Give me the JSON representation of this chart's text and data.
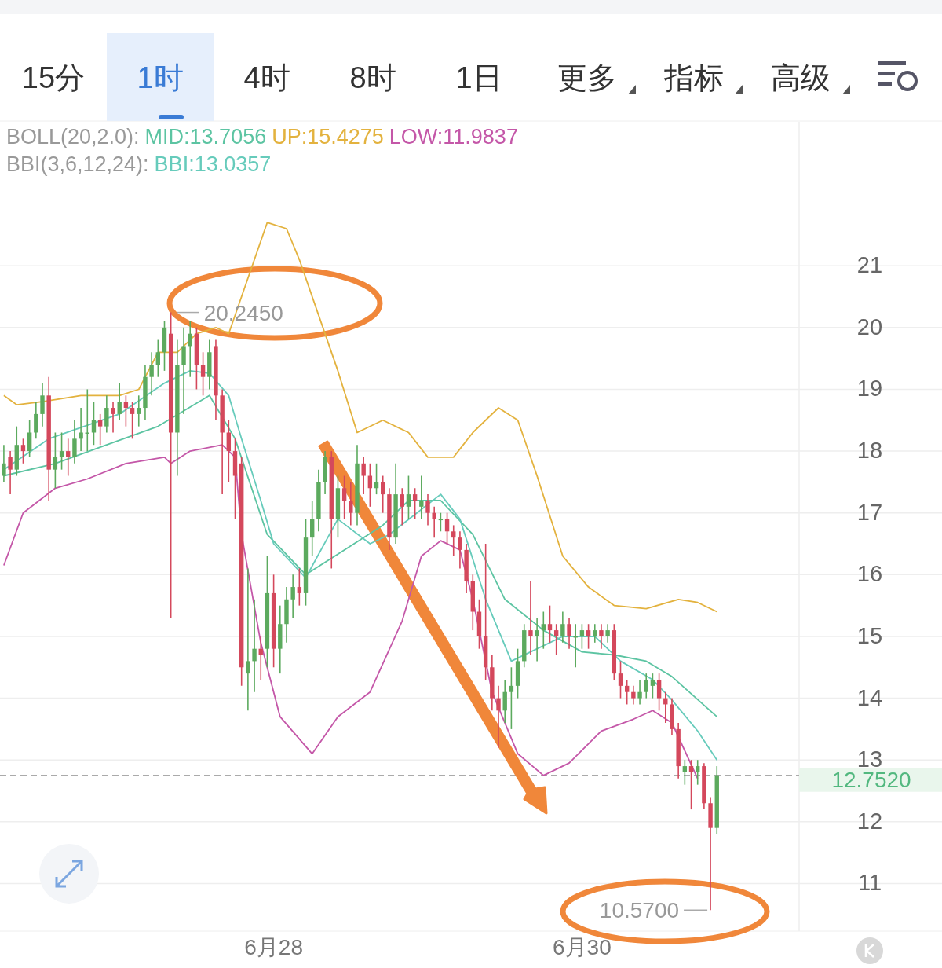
{
  "chart_data": {
    "type": "candlestick",
    "categories": [
      null,
      null,
      null,
      null,
      null,
      null,
      null,
      null,
      null,
      null,
      null,
      null,
      null,
      null,
      null,
      null,
      null,
      null,
      null,
      null,
      null,
      null,
      null,
      null,
      null,
      null,
      null,
      null,
      null,
      null,
      null,
      null,
      null,
      null,
      null,
      null,
      null,
      null,
      null,
      null,
      null,
      null,
      "6月28",
      null,
      null,
      null,
      null,
      null,
      null,
      null,
      null,
      null,
      null,
      null,
      null,
      null,
      null,
      null,
      null,
      null,
      null,
      null,
      null,
      null,
      null,
      null,
      null,
      null,
      null,
      null,
      null,
      null,
      null,
      null,
      null,
      null,
      null,
      null,
      null,
      null,
      null,
      null,
      null,
      null,
      null,
      null,
      null,
      null,
      null,
      null,
      "6月30",
      null,
      null,
      null,
      null,
      null,
      null,
      null,
      null,
      null,
      null,
      null,
      null,
      null,
      null,
      null,
      null,
      null,
      null,
      null,
      null,
      null,
      null,
      null,
      null,
      null,
      null,
      null,
      null,
      null,
      null,
      null,
      null,
      null
    ],
    "ohlc": [
      [
        17.6,
        18.1,
        17.5,
        17.8
      ],
      [
        17.9,
        18.0,
        17.3,
        17.7
      ],
      [
        17.7,
        18.4,
        17.6,
        18.1
      ],
      [
        18.1,
        18.2,
        17.8,
        18.0
      ],
      [
        18.0,
        18.5,
        17.9,
        18.3
      ],
      [
        18.3,
        18.8,
        18.2,
        18.6
      ],
      [
        18.6,
        19.1,
        18.4,
        18.9
      ],
      [
        18.9,
        19.2,
        17.2,
        17.7
      ],
      [
        17.7,
        18.3,
        17.4,
        17.9
      ],
      [
        17.9,
        18.3,
        17.7,
        18.0
      ],
      [
        18.0,
        18.2,
        17.6,
        17.9
      ],
      [
        17.9,
        18.5,
        17.8,
        18.2
      ],
      [
        18.2,
        18.7,
        18.0,
        18.3
      ],
      [
        18.3,
        19.0,
        18.0,
        18.3
      ],
      [
        18.3,
        18.8,
        18.1,
        18.5
      ],
      [
        18.5,
        18.6,
        18.1,
        18.4
      ],
      [
        18.4,
        18.9,
        18.3,
        18.7
      ],
      [
        18.7,
        18.8,
        18.3,
        18.6
      ],
      [
        18.6,
        19.1,
        18.5,
        18.8
      ],
      [
        18.8,
        18.9,
        18.4,
        18.7
      ],
      [
        18.7,
        18.8,
        18.2,
        18.6
      ],
      [
        18.6,
        18.9,
        18.4,
        18.7
      ],
      [
        18.7,
        19.4,
        18.5,
        19.2
      ],
      [
        19.2,
        19.6,
        18.9,
        19.4
      ],
      [
        19.4,
        19.8,
        19.2,
        19.6
      ],
      [
        19.6,
        20.1,
        19.3,
        20.0
      ],
      [
        19.9,
        20.245,
        15.3,
        18.3
      ],
      [
        18.3,
        19.8,
        17.6,
        19.4
      ],
      [
        19.4,
        20.0,
        18.6,
        19.7
      ],
      [
        19.7,
        20.1,
        19.2,
        19.9
      ],
      [
        19.9,
        20.0,
        19.0,
        19.4
      ],
      [
        19.4,
        19.6,
        18.9,
        19.2
      ],
      [
        19.2,
        19.8,
        19.0,
        19.6
      ],
      [
        19.7,
        19.8,
        18.5,
        18.9
      ],
      [
        18.9,
        19.0,
        17.3,
        18.3
      ],
      [
        18.3,
        18.5,
        17.5,
        18.0
      ],
      [
        18.0,
        18.2,
        16.9,
        17.6
      ],
      [
        17.8,
        17.9,
        14.2,
        14.5
      ],
      [
        14.4,
        16.1,
        13.8,
        14.6
      ],
      [
        14.6,
        15.6,
        14.1,
        14.8
      ],
      [
        14.8,
        15.0,
        14.3,
        14.7
      ],
      [
        14.8,
        16.3,
        14.5,
        15.7
      ],
      [
        15.7,
        16.0,
        14.5,
        14.8
      ],
      [
        14.8,
        15.5,
        14.4,
        15.2
      ],
      [
        15.2,
        15.8,
        14.9,
        15.6
      ],
      [
        15.6,
        16.0,
        15.3,
        15.8
      ],
      [
        15.8,
        16.1,
        15.5,
        15.7
      ],
      [
        15.7,
        16.9,
        15.5,
        16.6
      ],
      [
        16.6,
        17.2,
        16.3,
        16.9
      ],
      [
        16.9,
        17.7,
        16.7,
        17.5
      ],
      [
        17.5,
        18.0,
        17.3,
        17.9
      ],
      [
        17.9,
        18.0,
        16.1,
        16.9
      ],
      [
        16.9,
        17.6,
        16.6,
        17.4
      ],
      [
        17.4,
        17.6,
        16.9,
        17.2
      ],
      [
        17.2,
        17.5,
        16.8,
        17.0
      ],
      [
        17.0,
        18.1,
        16.8,
        17.8
      ],
      [
        17.8,
        17.9,
        17.3,
        17.6
      ],
      [
        17.6,
        17.8,
        17.1,
        17.4
      ],
      [
        17.4,
        17.8,
        17.3,
        17.5
      ],
      [
        17.5,
        17.6,
        17.0,
        17.3
      ],
      [
        17.3,
        17.4,
        16.4,
        16.6
      ],
      [
        16.6,
        17.8,
        16.5,
        17.3
      ],
      [
        17.3,
        17.4,
        16.8,
        17.1
      ],
      [
        17.1,
        17.6,
        16.9,
        17.3
      ],
      [
        17.3,
        17.4,
        16.9,
        17.2
      ],
      [
        17.1,
        17.6,
        16.9,
        17.2
      ],
      [
        17.2,
        17.3,
        16.8,
        17.0
      ],
      [
        17.0,
        17.1,
        16.6,
        16.9
      ],
      [
        16.9,
        17.0,
        16.7,
        16.9
      ],
      [
        16.9,
        17.0,
        16.5,
        16.7
      ],
      [
        16.7,
        16.8,
        16.3,
        16.6
      ],
      [
        16.6,
        16.7,
        16.1,
        16.4
      ],
      [
        16.4,
        16.5,
        15.7,
        15.9
      ],
      [
        15.9,
        16.0,
        15.1,
        15.4
      ],
      [
        15.4,
        15.6,
        14.8,
        15.0
      ],
      [
        15.0,
        16.5,
        14.3,
        14.5
      ],
      [
        14.5,
        14.7,
        13.8,
        14.0
      ],
      [
        14.0,
        14.2,
        13.2,
        13.8
      ],
      [
        13.8,
        14.3,
        13.6,
        14.1
      ],
      [
        14.1,
        14.5,
        13.5,
        14.2
      ],
      [
        14.2,
        14.8,
        14.0,
        14.6
      ],
      [
        14.6,
        15.2,
        14.5,
        15.1
      ],
      [
        15.1,
        15.9,
        14.7,
        15.0
      ],
      [
        15.0,
        15.3,
        14.6,
        15.1
      ],
      [
        15.1,
        15.4,
        14.8,
        15.2
      ],
      [
        15.2,
        15.5,
        14.9,
        15.1
      ],
      [
        15.1,
        15.2,
        14.7,
        15.0
      ],
      [
        15.0,
        15.4,
        14.9,
        15.2
      ],
      [
        15.2,
        15.3,
        14.8,
        15.0
      ],
      [
        15.0,
        15.2,
        14.5,
        15.0
      ],
      [
        15.0,
        15.2,
        14.8,
        15.1
      ],
      [
        15.1,
        15.2,
        14.8,
        15.0
      ],
      [
        15.0,
        15.2,
        14.9,
        15.1
      ],
      [
        15.1,
        15.2,
        14.8,
        15.0
      ],
      [
        15.0,
        15.2,
        14.9,
        15.1
      ],
      [
        15.1,
        15.2,
        14.3,
        14.4
      ],
      [
        14.4,
        14.6,
        14.0,
        14.2
      ],
      [
        14.2,
        14.3,
        13.9,
        14.1
      ],
      [
        14.1,
        14.2,
        13.9,
        14.0
      ],
      [
        14.0,
        14.3,
        13.9,
        14.1
      ],
      [
        14.1,
        14.4,
        14.0,
        14.3
      ],
      [
        14.2,
        14.4,
        14.0,
        14.3
      ],
      [
        14.3,
        14.4,
        13.8,
        14.0
      ],
      [
        14.0,
        14.1,
        13.6,
        13.9
      ],
      [
        13.9,
        14.0,
        13.4,
        13.5
      ],
      [
        13.5,
        13.6,
        12.7,
        12.9
      ],
      [
        12.8,
        13.0,
        12.6,
        12.9
      ],
      [
        12.9,
        13.0,
        12.2,
        12.8
      ],
      [
        12.8,
        13.0,
        12.6,
        12.9
      ],
      [
        12.9,
        12.95,
        12.2,
        12.3
      ],
      [
        12.3,
        12.4,
        10.57,
        11.9
      ],
      [
        11.9,
        12.9,
        11.8,
        12.752
      ],
      null,
      null,
      null,
      null,
      null,
      null,
      null,
      null,
      null,
      null,
      null,
      null
    ],
    "series": [
      {
        "name": "MID:13.7056",
        "type": "line",
        "color": "#5cc4a2",
        "values": [
          17.6,
          null,
          null,
          null,
          null,
          null,
          null,
          null,
          17.8,
          null,
          null,
          null,
          null,
          null,
          null,
          null,
          18.1,
          null,
          null,
          null,
          null,
          null,
          null,
          null,
          18.4,
          null,
          null,
          null,
          null,
          null,
          null,
          null,
          18.9,
          null,
          null,
          null,
          18.2,
          null,
          null,
          null,
          null,
          16.65,
          null,
          null,
          null,
          null,
          null,
          16.0,
          null,
          null,
          null,
          null,
          null,
          16.4,
          null,
          null,
          null,
          null,
          null,
          16.8,
          null,
          null,
          null,
          17.2,
          null,
          null,
          null,
          null,
          17.2,
          null,
          null,
          null,
          null,
          16.65,
          null,
          null,
          null,
          null,
          15.6,
          null,
          null,
          null,
          null,
          null,
          15.1,
          null,
          null,
          null,
          null,
          null,
          14.75,
          null,
          null,
          null,
          null,
          14.7,
          null,
          null,
          null,
          null,
          14.6,
          null,
          null,
          null,
          14.35,
          null,
          null,
          null,
          null,
          null,
          null,
          13.7,
          null,
          null,
          null,
          null,
          null,
          null,
          null,
          null,
          null,
          null,
          null,
          null
        ]
      },
      {
        "name": "UP:15.4275",
        "type": "line",
        "color": "#e3b23e",
        "values": [
          18.9,
          null,
          18.75,
          null,
          null,
          null,
          18.8,
          null,
          null,
          null,
          null,
          null,
          18.9,
          null,
          null,
          null,
          null,
          null,
          18.9,
          null,
          null,
          19.0,
          null,
          null,
          19.6,
          null,
          null,
          19.6,
          null,
          null,
          19.9,
          null,
          null,
          20.0,
          null,
          19.9,
          null,
          20.5,
          null,
          null,
          null,
          21.7,
          null,
          null,
          21.6,
          null,
          21.1,
          null,
          null,
          20.2,
          null,
          null,
          19.3,
          null,
          null,
          18.3,
          null,
          null,
          null,
          18.5,
          null,
          null,
          null,
          18.3,
          null,
          null,
          17.9,
          null,
          null,
          null,
          17.9,
          null,
          null,
          18.3,
          null,
          null,
          null,
          18.7,
          null,
          null,
          18.5,
          null,
          null,
          17.6,
          null,
          null,
          null,
          16.3,
          null,
          null,
          null,
          15.8,
          null,
          null,
          null,
          15.5,
          null,
          null,
          null,
          null,
          15.45,
          null,
          null,
          null,
          null,
          15.6,
          null,
          null,
          15.55,
          null,
          null,
          15.4,
          null,
          null,
          null,
          null,
          null,
          null,
          null,
          null,
          null,
          null,
          null,
          null
        ]
      },
      {
        "name": "LOW:11.9837",
        "type": "line",
        "color": "#c457a8",
        "values": [
          16.15,
          null,
          null,
          17.0,
          null,
          null,
          null,
          null,
          17.4,
          null,
          null,
          null,
          null,
          17.55,
          null,
          null,
          null,
          null,
          null,
          17.8,
          null,
          null,
          null,
          null,
          null,
          17.9,
          17.8,
          null,
          null,
          18.0,
          null,
          null,
          null,
          null,
          18.1,
          null,
          17.9,
          16.65,
          null,
          null,
          14.9,
          null,
          null,
          13.7,
          null,
          null,
          null,
          null,
          13.1,
          null,
          null,
          null,
          13.7,
          null,
          null,
          null,
          null,
          14.1,
          null,
          null,
          null,
          null,
          15.25,
          null,
          null,
          16.3,
          null,
          null,
          16.55,
          null,
          null,
          16.4,
          null,
          15.6,
          null,
          null,
          14.1,
          null,
          null,
          null,
          13.1,
          null,
          null,
          null,
          12.75,
          null,
          null,
          null,
          12.95,
          null,
          null,
          null,
          null,
          13.47,
          null,
          null,
          null,
          null,
          13.66,
          null,
          null,
          13.8,
          null,
          null,
          13.6,
          null,
          null,
          null,
          12.7,
          null,
          null,
          null,
          null,
          null,
          null,
          null,
          null,
          null,
          null,
          null,
          null,
          null,
          null,
          null
        ]
      },
      {
        "name": "BBI:13.0357",
        "type": "line",
        "color": "#66cbbb",
        "values": [
          17.7,
          null,
          null,
          null,
          null,
          null,
          null,
          18.2,
          null,
          null,
          null,
          null,
          null,
          null,
          null,
          null,
          null,
          null,
          18.6,
          null,
          null,
          null,
          null,
          null,
          null,
          19.1,
          null,
          null,
          null,
          19.3,
          null,
          null,
          19.26,
          null,
          null,
          18.9,
          null,
          18.2,
          null,
          null,
          17.2,
          null,
          16.5,
          null,
          null,
          null,
          null,
          15.95,
          null,
          null,
          null,
          null,
          16.9,
          null,
          null,
          null,
          null,
          16.5,
          null,
          null,
          16.65,
          null,
          null,
          null,
          null,
          null,
          null,
          null,
          17.3,
          null,
          null,
          16.9,
          null,
          null,
          null,
          15.6,
          null,
          null,
          null,
          14.6,
          null,
          null,
          14.75,
          null,
          null,
          null,
          null,
          15.0,
          null,
          null,
          null,
          null,
          15.0,
          null,
          null,
          null,
          14.6,
          null,
          null,
          null,
          null,
          14.3,
          null,
          null,
          13.97,
          null,
          null,
          null,
          13.47,
          null,
          null,
          13.0,
          null,
          null,
          null,
          null,
          null,
          null,
          null,
          null,
          null,
          null,
          null,
          null
        ]
      }
    ],
    "ylim": [
      10.23,
      23.33
    ],
    "yticks": [
      11,
      12,
      13,
      14,
      15,
      16,
      17,
      18,
      19,
      20,
      21
    ],
    "grid": "y",
    "legend": "top right",
    "ref_lines": [
      {
        "axis": "y",
        "value": 12.752,
        "label": "12.7520",
        "line_style": "dashed"
      }
    ],
    "annotations": [
      "15分",
      "1时",
      "4时",
      "8时",
      "1日",
      "更多",
      "指标",
      "高级",
      "BOLL(20,2.0):",
      "BBI(3,6,12,24):",
      "20.2450",
      "10.5700"
    ]
  }
}
